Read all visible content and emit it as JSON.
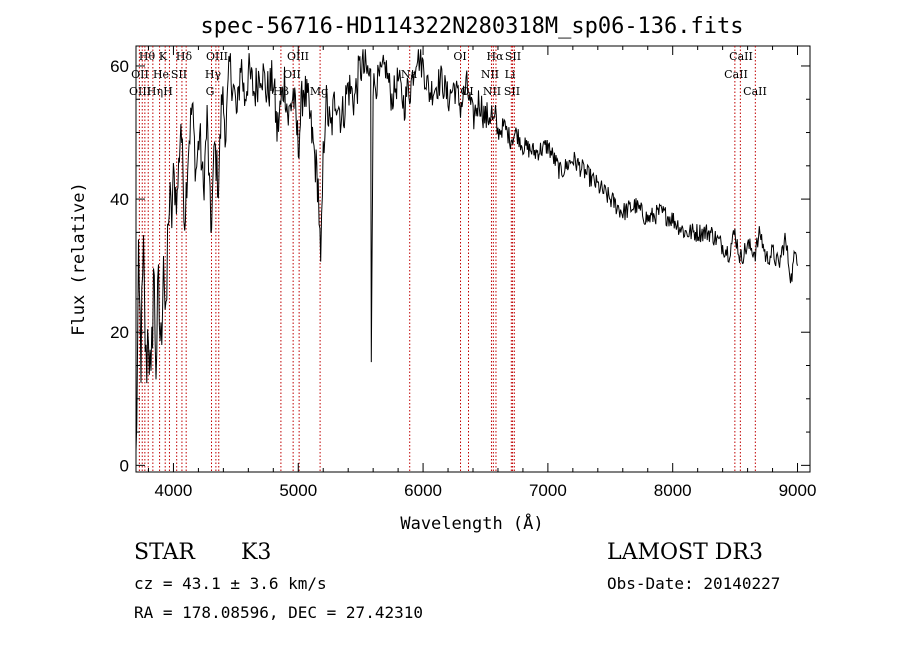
{
  "chart_data": {
    "type": "line",
    "title": "spec-56716-HD114322N280318M_sp06-136.fits",
    "xlabel": "Wavelength (Å)",
    "ylabel": "Flux (relative)",
    "xlim": [
      3700,
      9100
    ],
    "ylim": [
      -1,
      63
    ],
    "xticks": [
      4000,
      5000,
      6000,
      7000,
      8000,
      9000
    ],
    "yticks": [
      0,
      20,
      40,
      60
    ],
    "series": [
      {
        "name": "spectrum",
        "x": [
          3700,
          3720,
          3740,
          3760,
          3780,
          3800,
          3820,
          3840,
          3860,
          3880,
          3900,
          3920,
          3940,
          3960,
          3980,
          4000,
          4030,
          4060,
          4090,
          4120,
          4150,
          4180,
          4210,
          4240,
          4270,
          4300,
          4330,
          4360,
          4390,
          4420,
          4450,
          4480,
          4510,
          4540,
          4570,
          4600,
          4650,
          4700,
          4750,
          4800,
          4830,
          4860,
          4890,
          4920,
          4960,
          5000,
          5040,
          5080,
          5120,
          5160,
          5180,
          5200,
          5220,
          5260,
          5300,
          5350,
          5400,
          5450,
          5500,
          5550,
          5580,
          5585,
          5600,
          5650,
          5700,
          5750,
          5800,
          5850,
          5880,
          5893,
          5910,
          5950,
          6000,
          6050,
          6100,
          6150,
          6200,
          6250,
          6300,
          6350,
          6400,
          6450,
          6500,
          6550,
          6563,
          6580,
          6600,
          6650,
          6700,
          6750,
          6800,
          6900,
          7000,
          7100,
          7200,
          7300,
          7400,
          7500,
          7600,
          7700,
          7800,
          7900,
          8000,
          8100,
          8200,
          8300,
          8400,
          8450,
          8498,
          8542,
          8600,
          8662,
          8700,
          8750,
          8800,
          8850,
          8900,
          8950,
          8990,
          9000
        ],
        "values": [
          0,
          27,
          17,
          30,
          14,
          22,
          9,
          30,
          16,
          25,
          17,
          34,
          18,
          40,
          36,
          43,
          40,
          52,
          37,
          48,
          54,
          44,
          50,
          41,
          52,
          35,
          48,
          42,
          56,
          50,
          60,
          57,
          52,
          61,
          55,
          59,
          56,
          60,
          56,
          58,
          50,
          54,
          58,
          52,
          56,
          48,
          57,
          54,
          48,
          42,
          29,
          46,
          55,
          50,
          56,
          52,
          57,
          55,
          60,
          59,
          58,
          17,
          57,
          58,
          60,
          55,
          58,
          54,
          57,
          56,
          58,
          62,
          60,
          56,
          57,
          58,
          55,
          57,
          54,
          57,
          52,
          55,
          52,
          53,
          51,
          52,
          50,
          51,
          49,
          50,
          48,
          47,
          48,
          44,
          46,
          44,
          42,
          40,
          38,
          39,
          37,
          38,
          37,
          35,
          35,
          35,
          33,
          32,
          35,
          31,
          33,
          32,
          35,
          31,
          32,
          30,
          34,
          28,
          33,
          30
        ]
      }
    ],
    "lines": {
      "row1": [
        "Hθ",
        "K",
        "Hδ",
        "OIII",
        "OIII",
        "OI",
        "Hα",
        "SII",
        "CaII"
      ],
      "row2": [
        "OII",
        "He",
        "SII",
        "Hγ",
        "OII",
        "Na",
        "NII",
        "Li",
        "CaII"
      ],
      "row3": [
        "OIII",
        "Hη",
        "H",
        "G",
        "Hβ",
        "Mg",
        "OI",
        "NII",
        "SII",
        "CaII"
      ]
    }
  },
  "info": {
    "class": "STAR",
    "subclass": "K3",
    "cz": "cz = 43.1 ± 3.6 km/s",
    "radec": "RA = 178.08596, DEC =  27.42310",
    "survey": "LAMOST DR3",
    "obsdate": "Obs-Date: 20140227"
  }
}
